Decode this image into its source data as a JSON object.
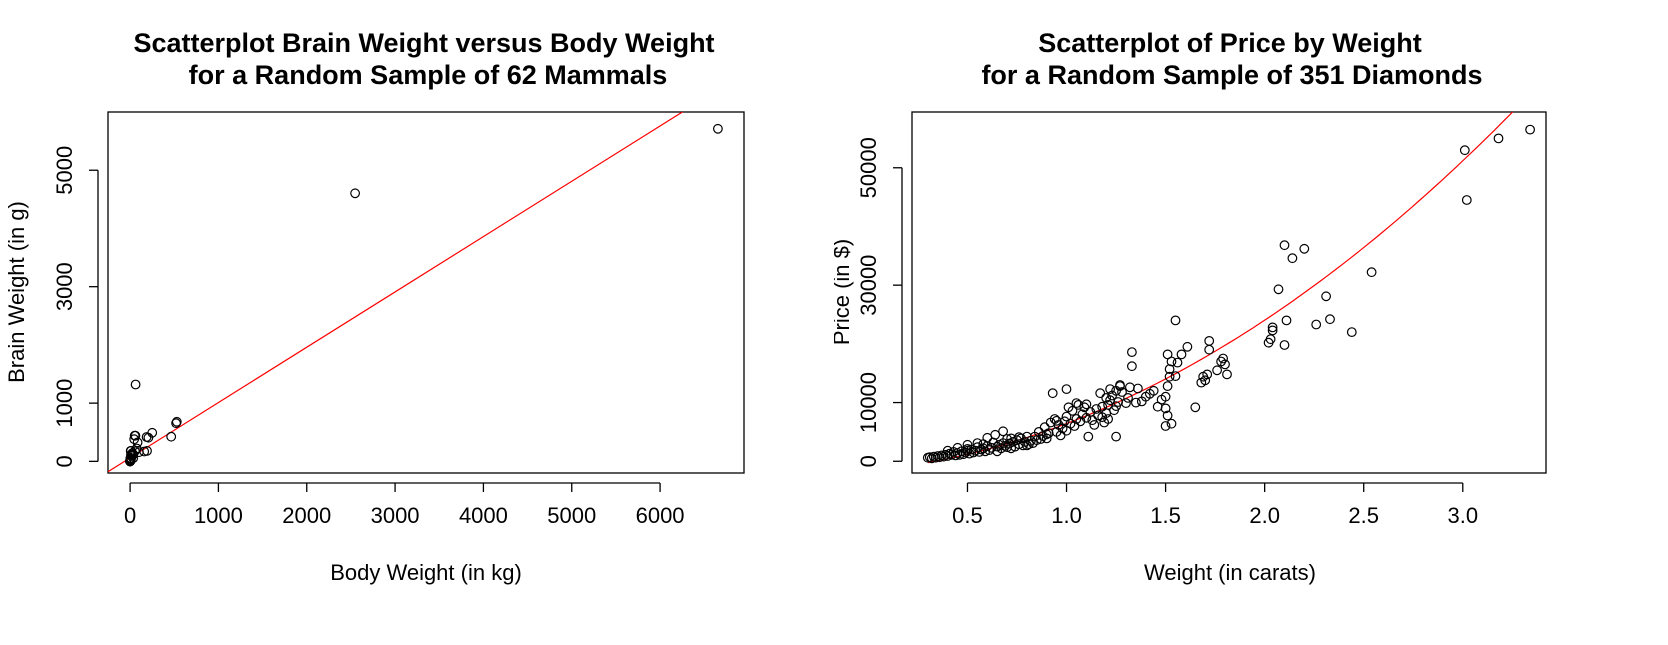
{
  "chart_data": [
    {
      "type": "scatter",
      "title": "Scatterplot Brain Weight versus Body Weight",
      "subtitle": "for a Random Sample of 62 Mammals",
      "xlabel": "Body Weight (in kg)",
      "ylabel": "Brain Weight (in g)",
      "xlim": [
        -250,
        6950
      ],
      "ylim": [
        -200,
        6000
      ],
      "xticks": [
        0,
        1000,
        2000,
        3000,
        4000,
        5000,
        6000
      ],
      "yticks": [
        0,
        1000,
        3000,
        5000
      ],
      "point_color": "#000000",
      "line_color": "#ff0000",
      "fit_line": {
        "intercept": 60,
        "slope": 0.95
      },
      "points": [
        [
          6654,
          5712
        ],
        [
          2547,
          4603
        ],
        [
          62,
          1320
        ],
        [
          521,
          655
        ],
        [
          529,
          680
        ],
        [
          465,
          423
        ],
        [
          250,
          490
        ],
        [
          207,
          406
        ],
        [
          187,
          419
        ],
        [
          192,
          180
        ],
        [
          100,
          157
        ],
        [
          60,
          440
        ],
        [
          55,
          175
        ],
        [
          52,
          440
        ],
        [
          36,
          119.5
        ],
        [
          27.66,
          115
        ],
        [
          14.83,
          98.2
        ],
        [
          10.55,
          179.5
        ],
        [
          10,
          115
        ],
        [
          6.8,
          179
        ],
        [
          4.235,
          50.4
        ],
        [
          3.385,
          44.5
        ],
        [
          3.5,
          10.8
        ],
        [
          3.6,
          21
        ],
        [
          4.19,
          58
        ],
        [
          4.288,
          39.2
        ],
        [
          2.5,
          12.1
        ],
        [
          2,
          12.3
        ],
        [
          1.62,
          11.4
        ],
        [
          1.41,
          17.5
        ],
        [
          1.35,
          8.1
        ],
        [
          1.04,
          5.5
        ],
        [
          0.92,
          5.7
        ],
        [
          0.75,
          12.3
        ],
        [
          0.55,
          2.4
        ],
        [
          0.48,
          15.5
        ],
        [
          0.425,
          6.4
        ],
        [
          0.28,
          1.9
        ],
        [
          0.12,
          1
        ],
        [
          0.101,
          4
        ],
        [
          0.104,
          2.5
        ],
        [
          0.06,
          1
        ],
        [
          0.023,
          0.4
        ],
        [
          0.01,
          0.25
        ],
        [
          0.005,
          0.14
        ],
        [
          0.048,
          0.33
        ],
        [
          0.785,
          3.5
        ],
        [
          0.2,
          5
        ],
        [
          1.4,
          12.5
        ],
        [
          0.9,
          2.6
        ],
        [
          0.3,
          2.1
        ],
        [
          2,
          6.5
        ],
        [
          0.33,
          1.5
        ],
        [
          85,
          325
        ],
        [
          35,
          56
        ],
        [
          160,
          169
        ],
        [
          19,
          91
        ],
        [
          11,
          50
        ],
        [
          6,
          55
        ],
        [
          47,
          380
        ],
        [
          75,
          220
        ],
        [
          25,
          140
        ]
      ]
    },
    {
      "type": "scatter",
      "title": "Scatterplot of Price by Weight",
      "subtitle": "for a Random Sample of 351 Diamonds",
      "xlabel": "Weight (in carats)",
      "ylabel": "Price (in $)",
      "xlim": [
        0.22,
        3.42
      ],
      "ylim": [
        -2000,
        59500
      ],
      "xticks": [
        0.5,
        1.0,
        1.5,
        2.0,
        2.5,
        3.0
      ],
      "xtick_labels": [
        "0.5",
        "1.0",
        "1.5",
        "2.0",
        "2.5",
        "3.0"
      ],
      "yticks": [
        0,
        10000,
        30000,
        50000
      ],
      "point_color": "#000000",
      "line_color": "#ff0000",
      "fit_curve": {
        "form": "quadratic",
        "a": 4000,
        "b": -1000,
        "c": 0.3,
        "x_range": [
          0.3,
          3.35
        ]
      },
      "points": [
        [
          3.34,
          56500
        ],
        [
          3.18,
          55000
        ],
        [
          3.01,
          53000
        ],
        [
          3.02,
          44500
        ],
        [
          2.54,
          32200
        ],
        [
          2.44,
          22000
        ],
        [
          2.33,
          24200
        ],
        [
          2.31,
          28100
        ],
        [
          2.26,
          23300
        ],
        [
          2.2,
          36200
        ],
        [
          2.14,
          34600
        ],
        [
          2.1,
          36800
        ],
        [
          2.11,
          24000
        ],
        [
          2.1,
          19800
        ],
        [
          2.07,
          29300
        ],
        [
          2.04,
          22300
        ],
        [
          2.04,
          22800
        ],
        [
          2.03,
          20800
        ],
        [
          2.02,
          20200
        ],
        [
          1.81,
          14800
        ],
        [
          1.8,
          16500
        ],
        [
          1.79,
          17500
        ],
        [
          1.78,
          17000
        ],
        [
          1.76,
          15500
        ],
        [
          1.72,
          20500
        ],
        [
          1.72,
          19000
        ],
        [
          1.71,
          14800
        ],
        [
          1.7,
          13800
        ],
        [
          1.69,
          14400
        ],
        [
          1.68,
          13400
        ],
        [
          1.65,
          9200
        ],
        [
          1.61,
          19500
        ],
        [
          1.58,
          18200
        ],
        [
          1.56,
          16800
        ],
        [
          1.55,
          24000
        ],
        [
          1.55,
          14500
        ],
        [
          1.53,
          17000
        ],
        [
          1.52,
          15700
        ],
        [
          1.52,
          14400
        ],
        [
          1.51,
          18200
        ],
        [
          1.51,
          12800
        ],
        [
          1.5,
          11000
        ],
        [
          1.5,
          9000
        ],
        [
          1.51,
          7800
        ],
        [
          1.53,
          6400
        ],
        [
          1.5,
          6000
        ],
        [
          1.48,
          10500
        ],
        [
          1.42,
          11500
        ],
        [
          1.4,
          11000
        ],
        [
          1.38,
          10200
        ],
        [
          1.36,
          12400
        ],
        [
          1.33,
          16200
        ],
        [
          1.33,
          18600
        ],
        [
          1.31,
          10800
        ],
        [
          1.3,
          9900
        ],
        [
          1.28,
          11800
        ],
        [
          1.27,
          12800
        ],
        [
          1.26,
          10100
        ],
        [
          1.25,
          9400
        ],
        [
          1.25,
          12000
        ],
        [
          1.24,
          8700
        ],
        [
          1.23,
          11200
        ],
        [
          1.22,
          10400
        ],
        [
          1.21,
          9600
        ],
        [
          1.21,
          7200
        ],
        [
          1.2,
          10800
        ],
        [
          1.2,
          8200
        ],
        [
          1.19,
          6600
        ],
        [
          1.18,
          9300
        ],
        [
          1.17,
          11600
        ],
        [
          1.16,
          7800
        ],
        [
          1.15,
          8900
        ],
        [
          1.14,
          6200
        ],
        [
          1.12,
          8400
        ],
        [
          1.11,
          4200
        ],
        [
          1.1,
          7400
        ],
        [
          1.09,
          9200
        ],
        [
          1.08,
          8000
        ],
        [
          1.07,
          6800
        ],
        [
          1.06,
          9600
        ],
        [
          1.05,
          7200
        ],
        [
          1.04,
          6000
        ],
        [
          1.03,
          8600
        ],
        [
          1.02,
          6400
        ],
        [
          1.01,
          9200
        ],
        [
          1.0,
          7600
        ],
        [
          1.0,
          5200
        ],
        [
          0.99,
          6800
        ],
        [
          0.98,
          5600
        ],
        [
          0.97,
          4400
        ],
        [
          0.96,
          6200
        ],
        [
          0.95,
          5000
        ],
        [
          0.94,
          7200
        ],
        [
          0.93,
          11600
        ],
        [
          0.92,
          6600
        ],
        [
          0.91,
          4800
        ],
        [
          0.9,
          3900
        ],
        [
          0.89,
          5800
        ],
        [
          0.88,
          4300
        ],
        [
          0.87,
          3800
        ],
        [
          0.86,
          5000
        ],
        [
          1.0,
          12300
        ],
        [
          1.25,
          4200
        ],
        [
          0.85,
          3600
        ],
        [
          0.84,
          4200
        ],
        [
          0.83,
          3100
        ],
        [
          0.82,
          3500
        ],
        [
          0.81,
          2900
        ],
        [
          0.8,
          4200
        ],
        [
          0.79,
          3300
        ],
        [
          0.78,
          2700
        ],
        [
          0.77,
          3900
        ],
        [
          0.76,
          2900
        ],
        [
          0.75,
          3600
        ],
        [
          0.74,
          2500
        ],
        [
          0.73,
          3300
        ],
        [
          0.72,
          2200
        ],
        [
          0.71,
          3000
        ],
        [
          0.7,
          3800
        ],
        [
          0.69,
          2600
        ],
        [
          0.68,
          3100
        ],
        [
          0.67,
          2200
        ],
        [
          0.66,
          2800
        ],
        [
          0.65,
          2500
        ],
        [
          0.64,
          4500
        ],
        [
          0.63,
          3200
        ],
        [
          0.62,
          2300
        ],
        [
          0.61,
          1900
        ],
        [
          0.6,
          2600
        ],
        [
          0.59,
          1700
        ],
        [
          0.58,
          2200
        ],
        [
          0.57,
          2000
        ],
        [
          0.56,
          1600
        ],
        [
          0.55,
          2400
        ],
        [
          0.54,
          1800
        ],
        [
          0.53,
          1500
        ],
        [
          0.52,
          2000
        ],
        [
          0.51,
          1300
        ],
        [
          0.5,
          1800
        ],
        [
          0.5,
          2800
        ],
        [
          0.49,
          1500
        ],
        [
          0.48,
          1200
        ],
        [
          0.47,
          1700
        ],
        [
          0.46,
          1100
        ],
        [
          0.45,
          1400
        ],
        [
          0.44,
          1000
        ],
        [
          0.43,
          1600
        ],
        [
          0.42,
          1100
        ],
        [
          0.41,
          1300
        ],
        [
          0.4,
          900
        ],
        [
          0.4,
          1800
        ],
        [
          0.39,
          1100
        ],
        [
          0.38,
          800
        ],
        [
          0.37,
          1000
        ],
        [
          0.36,
          700
        ],
        [
          0.35,
          900
        ],
        [
          0.34,
          600
        ],
        [
          0.33,
          800
        ],
        [
          0.32,
          500
        ],
        [
          0.31,
          700
        ],
        [
          0.3,
          600
        ],
        [
          0.6,
          4000
        ],
        [
          0.68,
          5100
        ],
        [
          0.58,
          2900
        ],
        [
          0.76,
          4100
        ],
        [
          0.72,
          3900
        ],
        [
          0.55,
          3100
        ],
        [
          0.45,
          2300
        ],
        [
          0.5,
          2100
        ],
        [
          0.65,
          1700
        ],
        [
          0.7,
          2400
        ],
        [
          0.8,
          2700
        ],
        [
          0.9,
          4600
        ],
        [
          0.95,
          6900
        ],
        [
          1.05,
          9900
        ],
        [
          1.1,
          9700
        ],
        [
          1.13,
          7000
        ],
        [
          1.18,
          7500
        ],
        [
          1.22,
          12300
        ],
        [
          1.27,
          13000
        ],
        [
          1.32,
          12600
        ],
        [
          1.35,
          10000
        ],
        [
          1.44,
          12000
        ],
        [
          1.46,
          9300
        ]
      ]
    }
  ]
}
